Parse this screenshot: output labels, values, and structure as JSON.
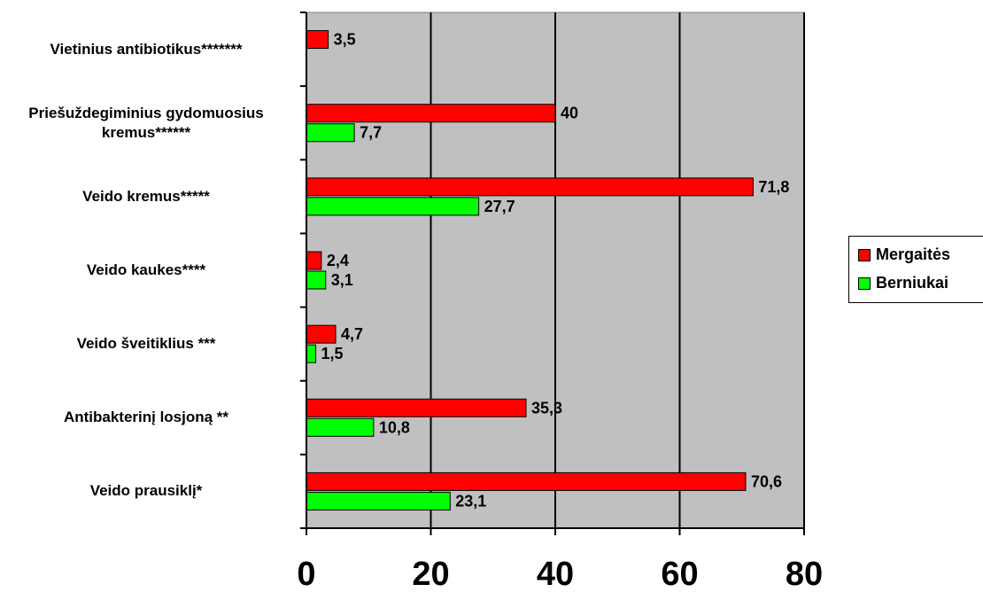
{
  "chart_data": {
    "type": "bar",
    "orientation": "horizontal",
    "categories": [
      "Vietinius antibiotikus*******",
      "Priešuždegiminius gydomuosius kremus******",
      "Veido kremus*****",
      "Veido kaukes****",
      "Veido šveitiklius ***",
      "Antibakterinį losjoną **",
      "Veido prausiklį*"
    ],
    "series": [
      {
        "name": "Mergaitės",
        "color": "#ff0000",
        "values": [
          3.5,
          40,
          71.8,
          2.4,
          4.7,
          35.3,
          70.6
        ],
        "labels": [
          "3,5",
          "40",
          "71,8",
          "2,4",
          "4,7",
          "35,3",
          "70,6"
        ]
      },
      {
        "name": "Berniukai",
        "color": "#00ff00",
        "values": [
          null,
          7.7,
          27.7,
          3.1,
          1.5,
          10.8,
          23.1
        ],
        "labels": [
          "",
          "7,7",
          "27,7",
          "3,1",
          "1,5",
          "10,8",
          "23,1"
        ]
      }
    ],
    "xlim": [
      0,
      80
    ],
    "xticks": [
      "0",
      "20",
      "40",
      "60",
      "80"
    ],
    "grid": true,
    "plot_background": "#c0c0c0",
    "legend_position": "right"
  }
}
